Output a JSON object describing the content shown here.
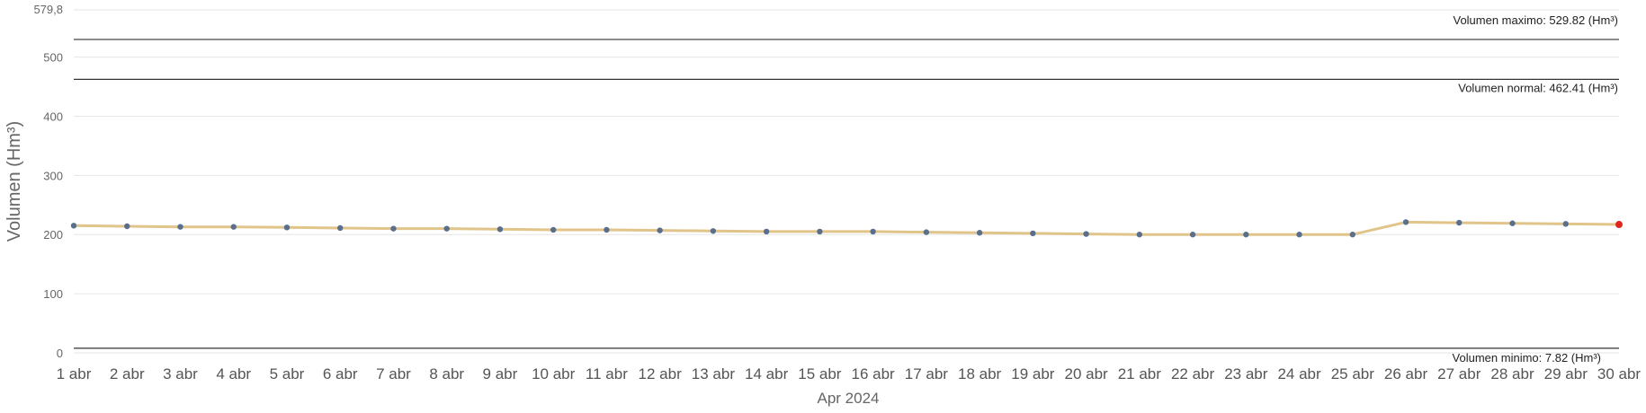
{
  "chart_data": {
    "type": "line",
    "xlabel": "Apr 2024",
    "ylabel": "Volumen (Hm³)",
    "ylim": [
      0,
      579.8
    ],
    "yticks": [
      0,
      100,
      200,
      300,
      400,
      500
    ],
    "ytop_label": "579,8",
    "categories": [
      "1 abr",
      "2 abr",
      "3 abr",
      "4 abr",
      "5 abr",
      "6 abr",
      "7 abr",
      "8 abr",
      "9 abr",
      "10 abr",
      "11 abr",
      "12 abr",
      "13 abr",
      "14 abr",
      "15 abr",
      "16 abr",
      "17 abr",
      "18 abr",
      "19 abr",
      "20 abr",
      "21 abr",
      "22 abr",
      "23 abr",
      "24 abr",
      "25 abr",
      "26 abr",
      "27 abr",
      "28 abr",
      "29 abr",
      "30 abr"
    ],
    "series": [
      {
        "values": [
          215,
          214,
          213,
          213,
          212,
          211,
          210,
          210,
          209,
          208,
          208,
          207,
          206,
          205,
          205,
          205,
          204,
          203,
          202,
          201,
          200,
          200,
          200,
          200,
          200,
          221,
          220,
          219,
          218,
          217
        ]
      }
    ],
    "reference_lines": [
      {
        "key": "max",
        "value": 529.82,
        "label": "Volumen maximo: 529.82 (Hm³)",
        "label_position": "above"
      },
      {
        "key": "normal",
        "value": 462.41,
        "label": "Volumen normal: 462.41 (Hm³)",
        "label_position": "below"
      },
      {
        "key": "min",
        "value": 7.82,
        "label": "Volumen minimo: 7.82 (Hm³)",
        "label_position": "below"
      }
    ],
    "grid": true,
    "colors": {
      "line": "#e0c489",
      "point": "#5a6f8c",
      "last_point": "#e0241c",
      "reference": "#333333"
    }
  }
}
